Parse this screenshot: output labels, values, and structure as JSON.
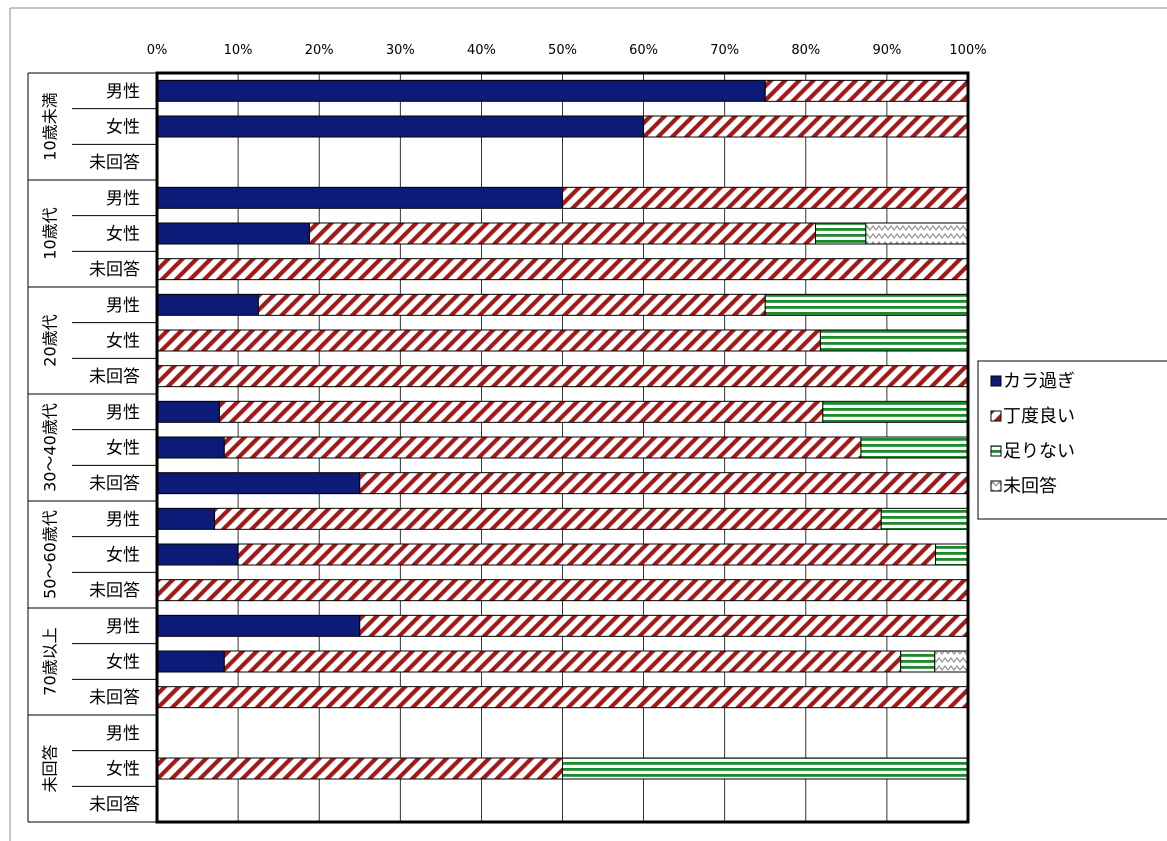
{
  "chart_data": {
    "type": "bar",
    "orientation": "horizontal",
    "stacked": "percent",
    "x_ticks": [
      "0%",
      "10%",
      "20%",
      "30%",
      "40%",
      "50%",
      "60%",
      "70%",
      "80%",
      "90%",
      "100%"
    ],
    "xlim": [
      0,
      100
    ],
    "grid": true,
    "legend_position": "right",
    "groups": [
      {
        "label": "10歳未満",
        "rows": [
          "男性",
          "女性",
          "未回答"
        ]
      },
      {
        "label": "10歳代",
        "rows": [
          "男性",
          "女性",
          "未回答"
        ]
      },
      {
        "label": "20歳代",
        "rows": [
          "男性",
          "女性",
          "未回答"
        ]
      },
      {
        "label": "30～40歳代",
        "rows": [
          "男性",
          "女性",
          "未回答"
        ]
      },
      {
        "label": "50～60歳代",
        "rows": [
          "男性",
          "女性",
          "未回答"
        ]
      },
      {
        "label": "70歳以上",
        "rows": [
          "男性",
          "女性",
          "未回答"
        ]
      },
      {
        "label": "未回答",
        "rows": [
          "男性",
          "女性",
          "未回答"
        ]
      }
    ],
    "series": [
      {
        "name": "カラ過ぎ",
        "color": "#0d1b78",
        "pattern": "solid",
        "values": [
          75,
          60,
          0,
          50,
          18.8,
          0,
          12.5,
          0,
          0,
          7.7,
          8.3,
          25,
          7.1,
          10,
          0,
          25,
          8.3,
          0,
          0,
          0,
          0
        ]
      },
      {
        "name": "丁度良い",
        "color": "#a01a1a",
        "pattern": "diagonal",
        "values": [
          25,
          40,
          0,
          50,
          62.4,
          100,
          62.5,
          81.8,
          100,
          74.4,
          78.5,
          75,
          82.2,
          86,
          100,
          75,
          83.4,
          100,
          0,
          50,
          0
        ]
      },
      {
        "name": "足りない",
        "color": "#1a8a2a",
        "pattern": "horizontal",
        "values": [
          0,
          0,
          0,
          0,
          6.2,
          0,
          25,
          18.2,
          0,
          17.9,
          13.2,
          0,
          10.7,
          4,
          0,
          0,
          4.2,
          0,
          0,
          50,
          0
        ]
      },
      {
        "name": "未回答",
        "color": "#bdbdbd",
        "pattern": "wave",
        "values": [
          0,
          0,
          0,
          0,
          12.6,
          0,
          0,
          0,
          0,
          0,
          0,
          0,
          0,
          0,
          0,
          0,
          4.1,
          0,
          0,
          0,
          0
        ]
      }
    ]
  }
}
